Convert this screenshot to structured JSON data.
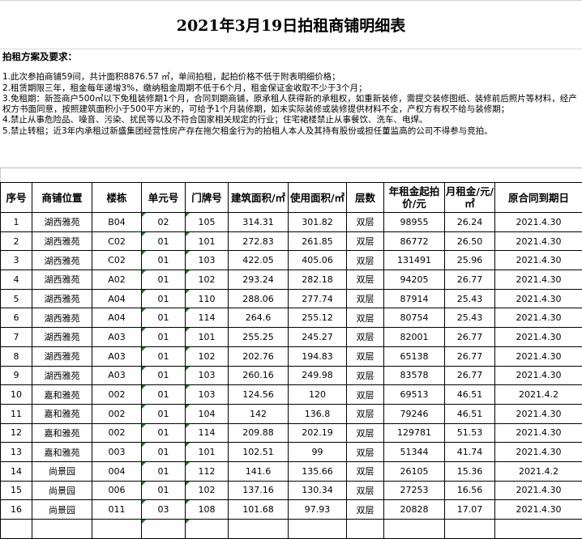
{
  "title": "2021年3月19日拍租商铺明细表",
  "notes": {
    "heading": "拍租方案及要求：",
    "items": [
      "1.此次参拍商铺59间，共计面积8876.57 ㎡，单间拍租，起拍价格不低于附表明细价格；",
      "2.租赁期限三年，租金每年递增3%，缴纳租金周期不低于6个月，租金保证金收取不少于3个月；",
      "3.免租期：新签商户500㎡以下免租装修期1个月，合同到期商铺，原承租人获得新的承租权，如重新装修，需提交装修图纸、装修前后照片等材料，经产权方书面同意，按照建筑面积小于500平方米的，可给予1个月装修期，如未实际装修或装修提供材料不全，产权方有权不给与装修期；",
      "4.禁止从事危险品、噪音、污染、扰民等以及不符合国家相关规定的行业；住宅裙楼禁止从事餐饮、洗车、电焊。",
      "5.禁止转租；近3年内承租过新盛集团经营性房产存在拖欠租金行为的拍租人本人及其持有股份或担任董监高的公司不得参与竞拍。"
    ]
  },
  "table": {
    "headers": [
      "序号",
      "商铺位置",
      "楼栋",
      "单元号",
      "门牌号",
      "建筑面积/㎡",
      "使用面积/㎡",
      "层数",
      "年租金起拍价/元",
      "月租金/元/㎡",
      "原合同到期日"
    ],
    "rows": [
      [
        "1",
        "湖西雅苑",
        "B04",
        "02",
        "105",
        "314.31",
        "301.82",
        "双层",
        "98955",
        "26.24",
        "2021.4.30"
      ],
      [
        "2",
        "湖西雅苑",
        "C02",
        "01",
        "101",
        "272.83",
        "261.85",
        "双层",
        "86772",
        "26.50",
        "2021.4.30"
      ],
      [
        "3",
        "湖西雅苑",
        "C02",
        "01",
        "103",
        "422.05",
        "405.06",
        "双层",
        "131491",
        "25.96",
        "2021.4.30"
      ],
      [
        "4",
        "湖西雅苑",
        "A02",
        "01",
        "102",
        "293.24",
        "282.18",
        "双层",
        "94205",
        "26.77",
        "2021.4.30"
      ],
      [
        "5",
        "湖西雅苑",
        "A04",
        "01",
        "110",
        "288.06",
        "277.74",
        "双层",
        "87914",
        "25.43",
        "2021.4.30"
      ],
      [
        "6",
        "湖西雅苑",
        "A04",
        "01",
        "114",
        "264.6",
        "255.12",
        "双层",
        "80754",
        "25.43",
        "2021.4.30"
      ],
      [
        "7",
        "湖西雅苑",
        "A03",
        "01",
        "101",
        "255.25",
        "245.27",
        "双层",
        "82001",
        "26.77",
        "2021.4.30"
      ],
      [
        "8",
        "湖西雅苑",
        "A03",
        "01",
        "102",
        "202.76",
        "194.83",
        "双层",
        "65138",
        "26.77",
        "2021.4.30"
      ],
      [
        "9",
        "湖西雅苑",
        "A03",
        "01",
        "103",
        "260.16",
        "249.98",
        "双层",
        "83578",
        "26.77",
        "2021.4.30"
      ],
      [
        "10",
        "嘉和雅苑",
        "002",
        "01",
        "103",
        "124.56",
        "120",
        "双层",
        "69513",
        "46.51",
        "2021.4.2"
      ],
      [
        "11",
        "嘉和雅苑",
        "002",
        "01",
        "104",
        "142",
        "136.8",
        "双层",
        "79246",
        "46.51",
        "2021.4.30"
      ],
      [
        "12",
        "嘉和雅苑",
        "002",
        "01",
        "114",
        "209.88",
        "202.19",
        "双层",
        "129781",
        "51.53",
        "2021.4.30"
      ],
      [
        "13",
        "嘉和雅苑",
        "003",
        "01",
        "101",
        "102.51",
        "99",
        "双层",
        "51344",
        "41.74",
        "2021.4.30"
      ],
      [
        "14",
        "尚景园",
        "004",
        "01",
        "112",
        "141.6",
        "135.66",
        "双层",
        "26105",
        "15.36",
        "2021.4.2"
      ],
      [
        "15",
        "尚景园",
        "006",
        "01",
        "102",
        "137.16",
        "130.34",
        "双层",
        "27253",
        "16.56",
        "2021.4.30"
      ],
      [
        "16",
        "尚景园",
        "011",
        "03",
        "108",
        "101.68",
        "97.93",
        "双层",
        "20828",
        "17.07",
        "2021.4.30"
      ],
      [
        "",
        "",
        "",
        "",
        "",
        "",
        "",
        "",
        "",
        "",
        ""
      ]
    ]
  }
}
